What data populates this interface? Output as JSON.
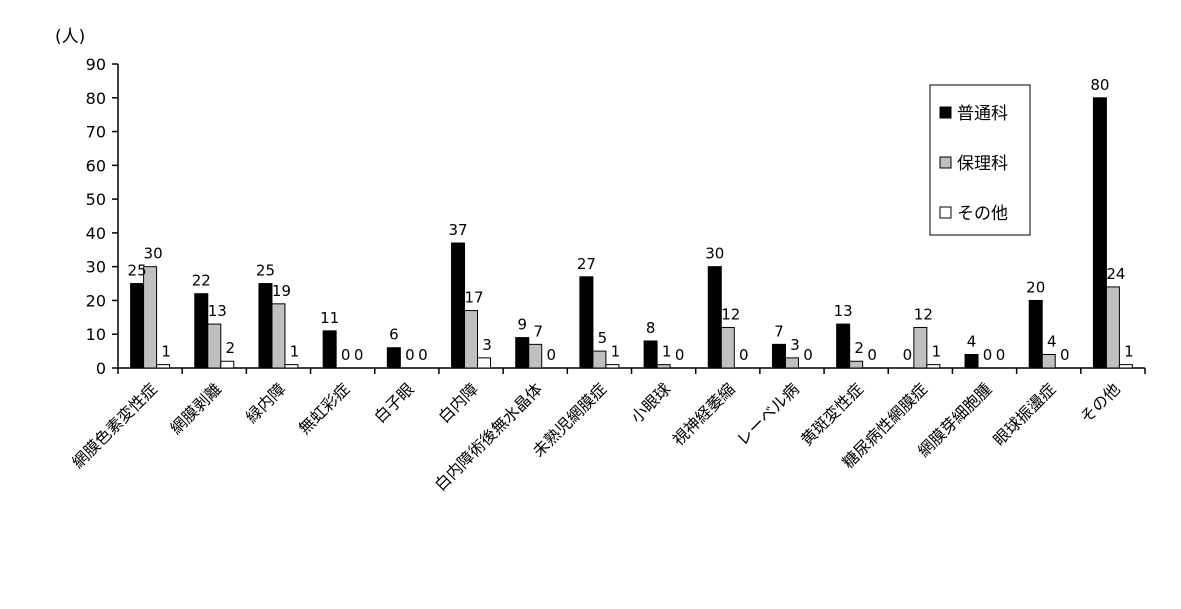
{
  "chart_data": {
    "type": "bar",
    "unit_label": "(人)",
    "ylim": [
      0,
      90
    ],
    "yticks": [
      0,
      10,
      20,
      30,
      40,
      50,
      60,
      70,
      80,
      90
    ],
    "categories": [
      "網膜色素変性症",
      "網膜剥離",
      "緑内障",
      "無虹彩症",
      "白子眼",
      "白内障",
      "白内障術後無水晶体",
      "未熟児網膜症",
      "小眼球",
      "視神経萎縮",
      "レーベル病",
      "黄斑変性症",
      "糖尿病性網膜症",
      "網膜芽細胞腫",
      "眼球振盪症",
      "その他"
    ],
    "series": [
      {
        "name": "普通科",
        "color": "#000000",
        "values": [
          25,
          22,
          25,
          11,
          6,
          37,
          9,
          27,
          8,
          30,
          7,
          13,
          0,
          4,
          20,
          80
        ]
      },
      {
        "name": "保理科",
        "color": "#c0c0c0",
        "values": [
          30,
          13,
          19,
          0,
          0,
          17,
          7,
          5,
          1,
          12,
          3,
          2,
          12,
          0,
          4,
          24
        ]
      },
      {
        "name": "その他",
        "color": "#ffffff",
        "values": [
          1,
          2,
          1,
          0,
          0,
          3,
          0,
          1,
          0,
          0,
          0,
          0,
          1,
          0,
          0,
          1
        ]
      }
    ],
    "legend_position": "top-right",
    "grid": false
  }
}
